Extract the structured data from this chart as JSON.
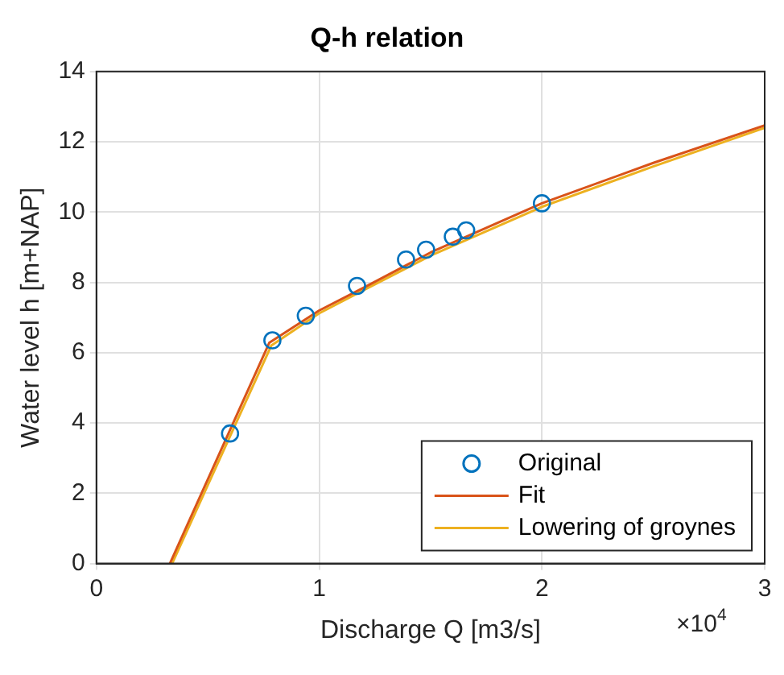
{
  "chart_data": {
    "type": "line",
    "title": "Q-h relation",
    "xlabel": "Discharge Q [m3/s]",
    "ylabel": "Water level h [m+NAP]",
    "annotations": [
      "×10$^{4}$"
    ],
    "xlim": [
      0,
      3
    ],
    "xticks": [
      0,
      1,
      2,
      3
    ],
    "ylim": [
      0,
      14
    ],
    "yticks": [
      0,
      2,
      4,
      6,
      8,
      10,
      12,
      14
    ],
    "grid": true,
    "legend": "bottom right",
    "series": [
      {
        "name": "Original",
        "type": "scatter",
        "marker": "circle",
        "color": "#0072bd",
        "x": [
          0.6,
          0.79,
          0.94,
          1.17,
          1.39,
          1.48,
          1.6,
          1.66,
          2.0
        ],
        "values": [
          3.7,
          6.35,
          7.05,
          7.9,
          8.65,
          8.93,
          9.3,
          9.48,
          10.25
        ]
      },
      {
        "name": "Fit",
        "marker": "none",
        "color": "#d95319",
        "x": [
          0.33,
          0.776,
          1.0,
          1.2,
          1.5,
          2.0,
          2.5,
          3.0
        ],
        "values": [
          0,
          6.28,
          7.2,
          7.85,
          8.85,
          10.25,
          11.4,
          12.47
        ]
      },
      {
        "name": "Lowering of groynes",
        "marker": "none",
        "color": "#edb120",
        "x": [
          0.34,
          0.785,
          1.0,
          1.2,
          1.5,
          2.0,
          2.5,
          3.0
        ],
        "values": [
          0,
          6.2,
          7.12,
          7.78,
          8.76,
          10.15,
          11.3,
          12.4
        ]
      }
    ]
  }
}
